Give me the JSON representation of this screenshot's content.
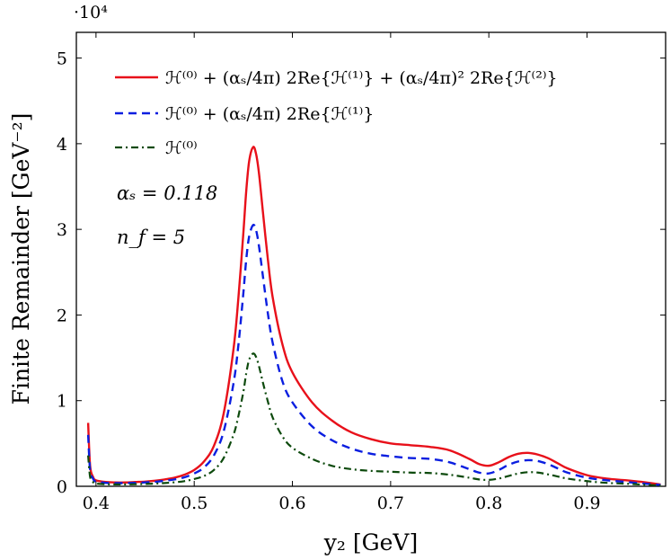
{
  "chart_data": {
    "type": "line",
    "title": "",
    "xlabel": "y₂ [GeV]",
    "ylabel": "Finite Remainder [GeV⁻²]",
    "y_multiplier_label": "·10⁴",
    "xlim": [
      0.38,
      0.98
    ],
    "ylim": [
      0,
      53000
    ],
    "x_ticks": [
      0.4,
      0.5,
      0.6,
      0.7,
      0.8,
      0.9
    ],
    "x_tick_labels": [
      "0.4",
      "0.5",
      "0.6",
      "0.7",
      "0.8",
      "0.9"
    ],
    "y_ticks": [
      0,
      10000,
      20000,
      30000,
      40000,
      50000
    ],
    "y_tick_labels": [
      "0",
      "1",
      "2",
      "3",
      "4",
      "5"
    ],
    "grid": false,
    "legend_position": "top-left",
    "annotations": [
      "αₛ = 0.118",
      "n_f = 5"
    ],
    "colors": {
      "nnlo": "#e8101a",
      "nlo": "#0a1ee0",
      "lo": "#0d4a0d"
    },
    "series": [
      {
        "name": "ℋ⁽⁰⁾ + (αₛ/4π) 2Re{ℋ⁽¹⁾} + (αₛ/4π)² 2Re{ℋ⁽²⁾}",
        "style": "solid",
        "x": [
          0.392,
          0.394,
          0.397,
          0.4,
          0.41,
          0.42,
          0.43,
          0.44,
          0.45,
          0.46,
          0.47,
          0.48,
          0.49,
          0.5,
          0.51,
          0.52,
          0.53,
          0.54,
          0.545,
          0.55,
          0.553,
          0.556,
          0.56,
          0.563,
          0.566,
          0.57,
          0.575,
          0.58,
          0.59,
          0.6,
          0.62,
          0.64,
          0.66,
          0.68,
          0.7,
          0.72,
          0.74,
          0.76,
          0.78,
          0.79,
          0.8,
          0.81,
          0.82,
          0.83,
          0.84,
          0.85,
          0.86,
          0.87,
          0.88,
          0.9,
          0.92,
          0.94,
          0.96,
          0.975
        ],
        "y": [
          7400,
          2400,
          1100,
          700,
          500,
          450,
          450,
          500,
          550,
          650,
          800,
          1000,
          1350,
          1900,
          2900,
          4700,
          8500,
          16000,
          22000,
          29500,
          34500,
          38000,
          39600,
          38800,
          36500,
          32000,
          26500,
          22000,
          16500,
          13300,
          9800,
          7700,
          6300,
          5500,
          5000,
          4800,
          4600,
          4200,
          3200,
          2600,
          2400,
          2800,
          3400,
          3800,
          3900,
          3700,
          3300,
          2700,
          2100,
          1300,
          900,
          700,
          450,
          200
        ]
      },
      {
        "name": "ℋ⁽⁰⁾ + (αₛ/4π) 2Re{ℋ⁽¹⁾}",
        "style": "dashed",
        "x": [
          0.392,
          0.394,
          0.397,
          0.4,
          0.41,
          0.42,
          0.43,
          0.44,
          0.45,
          0.46,
          0.47,
          0.48,
          0.49,
          0.5,
          0.51,
          0.52,
          0.53,
          0.54,
          0.545,
          0.55,
          0.553,
          0.556,
          0.56,
          0.563,
          0.566,
          0.57,
          0.575,
          0.58,
          0.59,
          0.6,
          0.62,
          0.64,
          0.66,
          0.68,
          0.7,
          0.72,
          0.74,
          0.76,
          0.78,
          0.79,
          0.8,
          0.81,
          0.82,
          0.83,
          0.84,
          0.85,
          0.86,
          0.87,
          0.88,
          0.9,
          0.92,
          0.94,
          0.96,
          0.975
        ],
        "y": [
          6000,
          1900,
          900,
          550,
          400,
          370,
          370,
          400,
          450,
          520,
          650,
          800,
          1050,
          1500,
          2200,
          3600,
          6400,
          12000,
          16500,
          22500,
          26500,
          29200,
          30500,
          29900,
          28000,
          24500,
          20200,
          16700,
          12200,
          9800,
          7000,
          5400,
          4400,
          3800,
          3500,
          3300,
          3200,
          2800,
          2000,
          1600,
          1500,
          1900,
          2500,
          2900,
          3050,
          2950,
          2600,
          2100,
          1600,
          1000,
          700,
          500,
          300,
          150
        ]
      },
      {
        "name": "ℋ⁽⁰⁾",
        "style": "dashdot",
        "x": [
          0.392,
          0.394,
          0.397,
          0.4,
          0.41,
          0.42,
          0.43,
          0.44,
          0.45,
          0.46,
          0.47,
          0.48,
          0.49,
          0.5,
          0.51,
          0.52,
          0.53,
          0.54,
          0.545,
          0.55,
          0.553,
          0.556,
          0.56,
          0.563,
          0.566,
          0.57,
          0.575,
          0.58,
          0.59,
          0.6,
          0.62,
          0.64,
          0.66,
          0.68,
          0.7,
          0.72,
          0.74,
          0.76,
          0.78,
          0.79,
          0.8,
          0.81,
          0.82,
          0.83,
          0.84,
          0.85,
          0.86,
          0.87,
          0.88,
          0.9,
          0.92,
          0.94,
          0.96,
          0.975
        ],
        "y": [
          3600,
          1100,
          500,
          320,
          240,
          220,
          220,
          240,
          270,
          310,
          380,
          470,
          600,
          850,
          1200,
          1900,
          3300,
          6000,
          8200,
          11000,
          13200,
          14800,
          15500,
          15100,
          14000,
          12100,
          9900,
          8000,
          5800,
          4500,
          3200,
          2400,
          2000,
          1800,
          1700,
          1600,
          1550,
          1350,
          1000,
          800,
          750,
          900,
          1200,
          1500,
          1650,
          1600,
          1400,
          1150,
          900,
          600,
          400,
          300,
          180,
          80
        ]
      }
    ]
  }
}
